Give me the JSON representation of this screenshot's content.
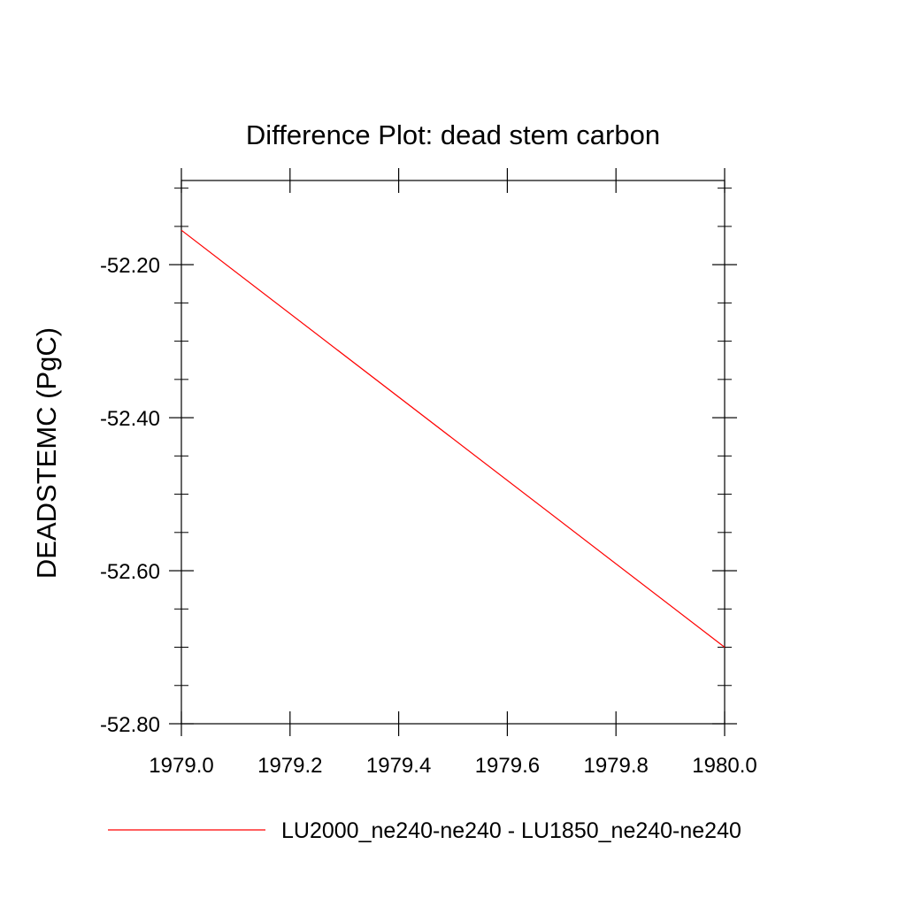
{
  "chart_data": {
    "type": "line",
    "title": "Difference Plot: dead stem carbon",
    "xlabel": "",
    "ylabel": "DEADSTEMC  (PgC)",
    "xlim": [
      1979.0,
      1980.0
    ],
    "ylim": [
      -52.8,
      -52.09
    ],
    "x_ticks": [
      1979.0,
      1979.2,
      1979.4,
      1979.6,
      1979.8,
      1980.0
    ],
    "x_tick_labels": [
      "1979.0",
      "1979.2",
      "1979.4",
      "1979.6",
      "1979.8",
      "1980.0"
    ],
    "y_ticks": [
      -52.2,
      -52.4,
      -52.6,
      -52.8
    ],
    "y_tick_labels": [
      "-52.20",
      "-52.40",
      "-52.60",
      "-52.80"
    ],
    "y_minor_step": 0.05,
    "x_minor_step": 0.2,
    "grid": false,
    "legend_position": "bottom",
    "series": [
      {
        "name": "LU2000_ne240-ne240 - LU1850_ne240-ne240",
        "color": "#ff0000",
        "x": [
          1979.0,
          1980.0
        ],
        "y": [
          -52.155,
          -52.7
        ]
      }
    ]
  }
}
